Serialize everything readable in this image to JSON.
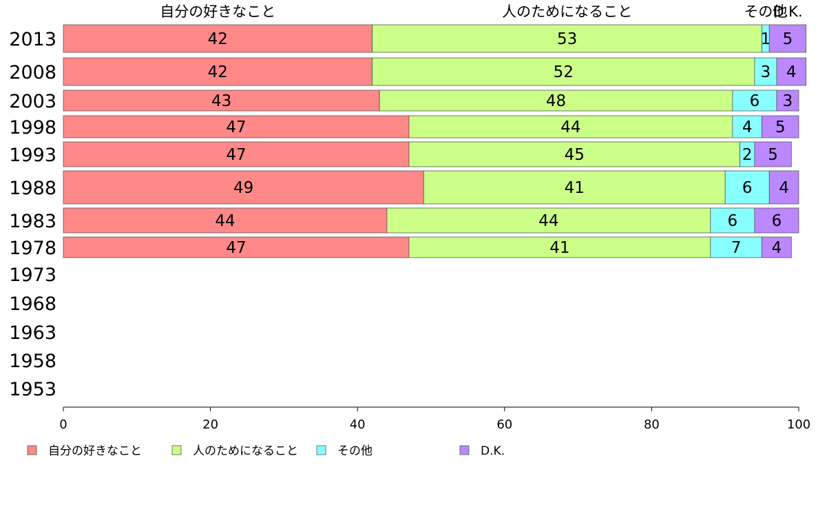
{
  "chart_data": {
    "type": "bar",
    "orientation": "horizontal",
    "stacked": true,
    "categories": [
      "2013",
      "2008",
      "2003",
      "1998",
      "1993",
      "1988",
      "1983",
      "1978",
      "1973",
      "1968",
      "1963",
      "1958",
      "1953"
    ],
    "series": [
      {
        "name": "自分の好きなこと",
        "color": "#FF8888",
        "values": [
          42,
          42,
          43,
          47,
          47,
          49,
          44,
          47,
          null,
          null,
          null,
          null,
          null
        ]
      },
      {
        "name": "人のためになること",
        "color": "#CCFF88",
        "values": [
          53,
          52,
          48,
          44,
          45,
          41,
          44,
          41,
          null,
          null,
          null,
          null,
          null
        ]
      },
      {
        "name": "その他",
        "color": "#88FFFF",
        "values": [
          1,
          3,
          6,
          4,
          2,
          6,
          6,
          7,
          null,
          null,
          null,
          null,
          null
        ]
      },
      {
        "name": "D.K.",
        "color": "#BB88FF",
        "values": [
          5,
          4,
          3,
          5,
          5,
          4,
          6,
          4,
          null,
          null,
          null,
          null,
          null
        ]
      }
    ],
    "top_labels": [
      "自分の好きなこと",
      "人のためになること",
      "その他",
      "D.K."
    ],
    "xlim": [
      0,
      100
    ],
    "xticks": [
      0,
      20,
      40,
      60,
      80,
      100
    ],
    "legend_position": "bottom",
    "grid": false
  }
}
